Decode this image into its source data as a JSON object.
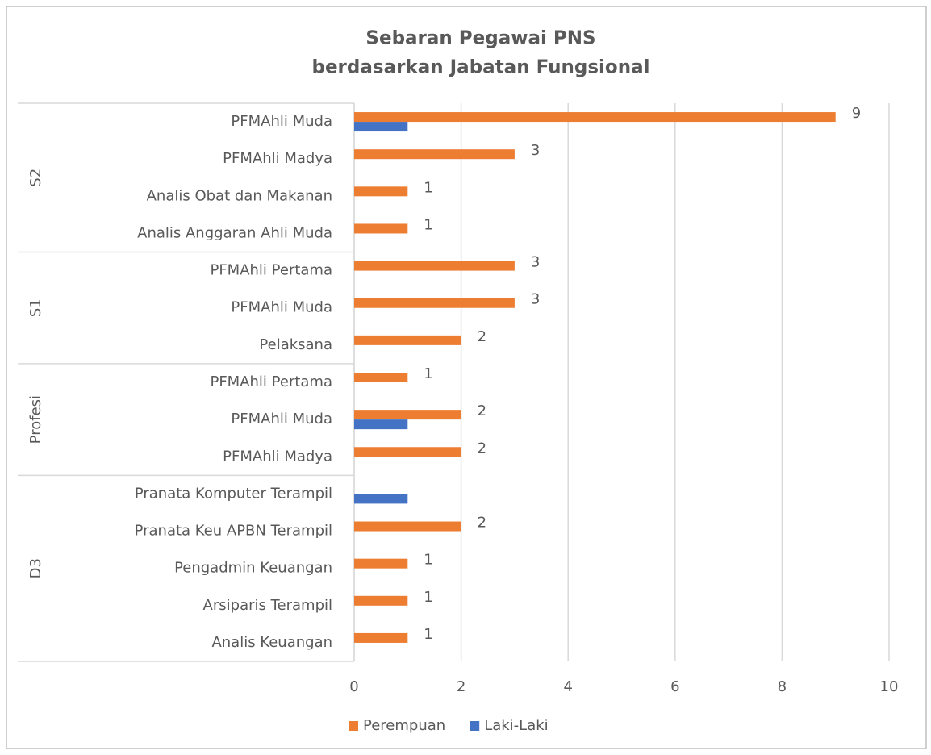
{
  "chart_data": {
    "type": "bar",
    "orientation": "horizontal",
    "title": [
      "Sebaran Pegawai PNS",
      "berdasarkan Jabatan Fungsional"
    ],
    "groups": [
      {
        "name": "S2",
        "categories": [
          "PFMAhli Muda",
          "PFMAhli Madya",
          "Analis Obat dan Makanan",
          "Analis Anggaran Ahli Muda"
        ]
      },
      {
        "name": "S1",
        "categories": [
          "PFMAhli Pertama",
          "PFMAhli Muda",
          "Pelaksana"
        ]
      },
      {
        "name": "Profesi",
        "categories": [
          "PFMAhli Pertama",
          "PFMAhli Muda",
          "PFMAhli Madya"
        ]
      },
      {
        "name": "D3",
        "categories": [
          "Pranata Komputer Terampil",
          "Pranata Keu APBN Terampil",
          "Pengadmin Keuangan",
          "Arsiparis Terampil",
          "Analis Keuangan"
        ]
      }
    ],
    "series": [
      {
        "name": "Perempuan",
        "color": "#ed7d31",
        "data_labels": true,
        "values": [
          9,
          3,
          1,
          1,
          3,
          3,
          2,
          1,
          2,
          2,
          null,
          2,
          1,
          1,
          1
        ]
      },
      {
        "name": "Laki-Laki",
        "color": "#4472c4",
        "data_labels": false,
        "values": [
          1,
          null,
          null,
          null,
          null,
          null,
          null,
          null,
          1,
          null,
          1,
          null,
          null,
          null,
          null
        ]
      }
    ],
    "xlim": [
      0,
      10
    ],
    "xticks": [
      0,
      2,
      4,
      6,
      8,
      10
    ],
    "grid": true,
    "legend": "bottom"
  }
}
